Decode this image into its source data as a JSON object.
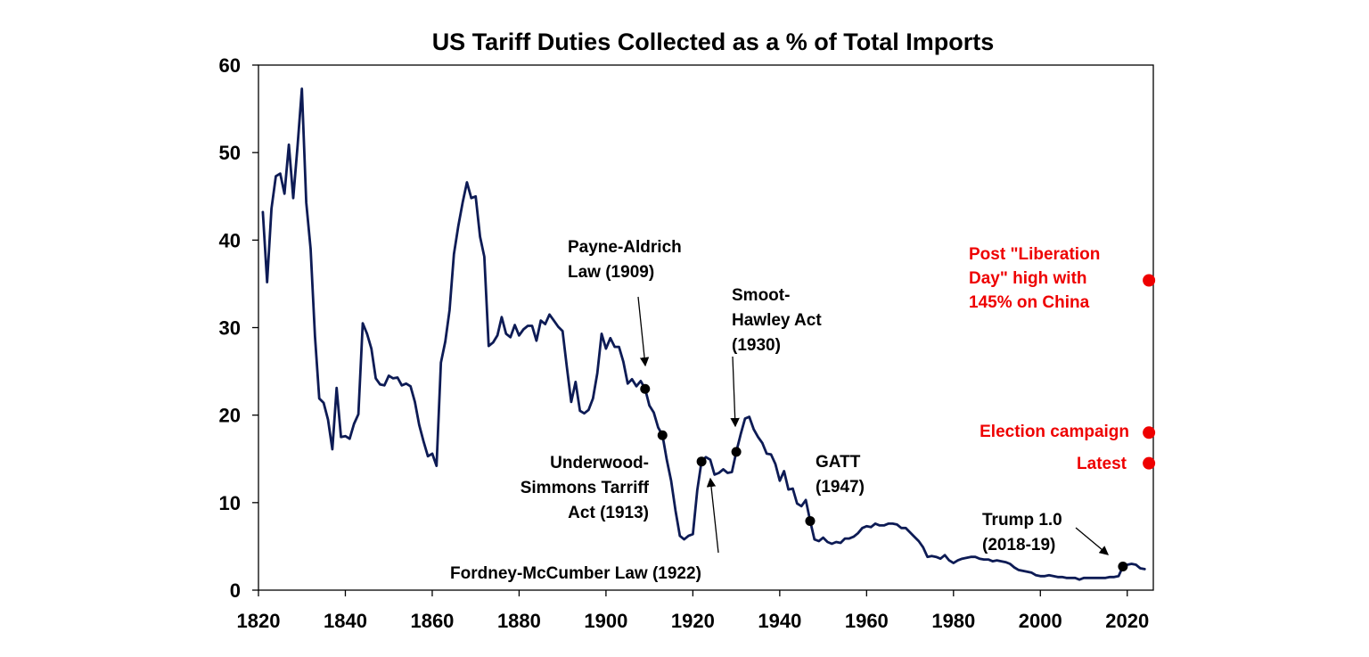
{
  "chart_data": {
    "type": "line",
    "title": "US Tariff Duties Collected as a % of Total Imports",
    "xlabel": "",
    "ylabel": "",
    "xlim": [
      1820,
      2026
    ],
    "ylim": [
      0,
      60
    ],
    "x_ticks": [
      "1820",
      "1840",
      "1860",
      "1880",
      "1900",
      "1920",
      "1940",
      "1960",
      "1980",
      "2000",
      "2020"
    ],
    "y_ticks": [
      "0",
      "10",
      "20",
      "30",
      "40",
      "50",
      "60"
    ],
    "grid": false,
    "colors": {
      "line": "#0d1b55",
      "marker": "#000000",
      "highlight": "#ee0000"
    },
    "series": [
      {
        "values": [
          [
            1821,
            43.2
          ],
          [
            1822,
            35.2
          ],
          [
            1823,
            43.6
          ],
          [
            1824,
            47.3
          ],
          [
            1825,
            47.6
          ],
          [
            1826,
            45.3
          ],
          [
            1827,
            50.9
          ],
          [
            1828,
            44.8
          ],
          [
            1829,
            50.8
          ],
          [
            1830,
            57.3
          ],
          [
            1831,
            44.3
          ],
          [
            1832,
            39.0
          ],
          [
            1833,
            29.0
          ],
          [
            1834,
            21.9
          ],
          [
            1835,
            21.4
          ],
          [
            1836,
            19.5
          ],
          [
            1837,
            16.1
          ],
          [
            1838,
            23.1
          ],
          [
            1839,
            17.5
          ],
          [
            1840,
            17.6
          ],
          [
            1841,
            17.3
          ],
          [
            1842,
            19.0
          ],
          [
            1843,
            20.1
          ],
          [
            1844,
            30.5
          ],
          [
            1845,
            29.3
          ],
          [
            1846,
            27.6
          ],
          [
            1847,
            24.2
          ],
          [
            1848,
            23.5
          ],
          [
            1849,
            23.4
          ],
          [
            1850,
            24.5
          ],
          [
            1851,
            24.2
          ],
          [
            1852,
            24.3
          ],
          [
            1853,
            23.4
          ],
          [
            1854,
            23.6
          ],
          [
            1855,
            23.3
          ],
          [
            1856,
            21.5
          ],
          [
            1857,
            18.9
          ],
          [
            1858,
            17.0
          ],
          [
            1859,
            15.3
          ],
          [
            1860,
            15.6
          ],
          [
            1861,
            14.2
          ],
          [
            1862,
            26.0
          ],
          [
            1863,
            28.4
          ],
          [
            1864,
            32.0
          ],
          [
            1865,
            38.4
          ],
          [
            1866,
            41.6
          ],
          [
            1867,
            44.3
          ],
          [
            1868,
            46.6
          ],
          [
            1869,
            44.8
          ],
          [
            1870,
            45.0
          ],
          [
            1871,
            40.4
          ],
          [
            1872,
            38.1
          ],
          [
            1873,
            27.9
          ],
          [
            1874,
            28.3
          ],
          [
            1875,
            29.1
          ],
          [
            1876,
            31.2
          ],
          [
            1877,
            29.3
          ],
          [
            1878,
            28.9
          ],
          [
            1879,
            30.3
          ],
          [
            1880,
            29.1
          ],
          [
            1881,
            29.8
          ],
          [
            1882,
            30.2
          ],
          [
            1883,
            30.2
          ],
          [
            1884,
            28.5
          ],
          [
            1885,
            30.8
          ],
          [
            1886,
            30.4
          ],
          [
            1887,
            31.5
          ],
          [
            1888,
            30.8
          ],
          [
            1889,
            30.1
          ],
          [
            1890,
            29.6
          ],
          [
            1891,
            25.5
          ],
          [
            1892,
            21.5
          ],
          [
            1893,
            23.8
          ],
          [
            1894,
            20.5
          ],
          [
            1895,
            20.2
          ],
          [
            1896,
            20.6
          ],
          [
            1897,
            21.9
          ],
          [
            1898,
            24.8
          ],
          [
            1899,
            29.3
          ],
          [
            1900,
            27.6
          ],
          [
            1901,
            28.8
          ],
          [
            1902,
            27.8
          ],
          [
            1903,
            27.8
          ],
          [
            1904,
            26.1
          ],
          [
            1905,
            23.6
          ],
          [
            1906,
            24.1
          ],
          [
            1907,
            23.3
          ],
          [
            1908,
            23.9
          ],
          [
            1909,
            23.0
          ],
          [
            1910,
            21.1
          ],
          [
            1911,
            20.3
          ],
          [
            1912,
            18.6
          ],
          [
            1913,
            17.7
          ],
          [
            1914,
            14.9
          ],
          [
            1915,
            12.5
          ],
          [
            1916,
            9.1
          ],
          [
            1917,
            6.2
          ],
          [
            1918,
            5.8
          ],
          [
            1919,
            6.2
          ],
          [
            1920,
            6.4
          ],
          [
            1921,
            11.4
          ],
          [
            1922,
            14.7
          ],
          [
            1923,
            15.2
          ],
          [
            1924,
            14.9
          ],
          [
            1925,
            13.2
          ],
          [
            1926,
            13.4
          ],
          [
            1927,
            13.8
          ],
          [
            1928,
            13.4
          ],
          [
            1929,
            13.5
          ],
          [
            1930,
            15.8
          ],
          [
            1931,
            17.8
          ],
          [
            1932,
            19.6
          ],
          [
            1933,
            19.8
          ],
          [
            1934,
            18.4
          ],
          [
            1935,
            17.5
          ],
          [
            1936,
            16.8
          ],
          [
            1937,
            15.6
          ],
          [
            1938,
            15.5
          ],
          [
            1939,
            14.4
          ],
          [
            1940,
            12.5
          ],
          [
            1941,
            13.6
          ],
          [
            1942,
            11.5
          ],
          [
            1943,
            11.6
          ],
          [
            1944,
            9.9
          ],
          [
            1945,
            9.6
          ],
          [
            1946,
            10.3
          ],
          [
            1947,
            7.9
          ],
          [
            1948,
            5.8
          ],
          [
            1949,
            5.6
          ],
          [
            1950,
            6.0
          ],
          [
            1951,
            5.5
          ],
          [
            1952,
            5.3
          ],
          [
            1953,
            5.5
          ],
          [
            1954,
            5.4
          ],
          [
            1955,
            5.9
          ],
          [
            1956,
            5.9
          ],
          [
            1957,
            6.1
          ],
          [
            1958,
            6.5
          ],
          [
            1959,
            7.1
          ],
          [
            1960,
            7.3
          ],
          [
            1961,
            7.2
          ],
          [
            1962,
            7.6
          ],
          [
            1963,
            7.4
          ],
          [
            1964,
            7.4
          ],
          [
            1965,
            7.6
          ],
          [
            1966,
            7.6
          ],
          [
            1967,
            7.5
          ],
          [
            1968,
            7.1
          ],
          [
            1969,
            7.1
          ],
          [
            1970,
            6.6
          ],
          [
            1971,
            6.1
          ],
          [
            1972,
            5.6
          ],
          [
            1973,
            4.9
          ],
          [
            1974,
            3.8
          ],
          [
            1975,
            3.9
          ],
          [
            1976,
            3.8
          ],
          [
            1977,
            3.6
          ],
          [
            1978,
            4.0
          ],
          [
            1979,
            3.4
          ],
          [
            1980,
            3.1
          ],
          [
            1981,
            3.4
          ],
          [
            1982,
            3.6
          ],
          [
            1983,
            3.7
          ],
          [
            1984,
            3.8
          ],
          [
            1985,
            3.8
          ],
          [
            1986,
            3.6
          ],
          [
            1987,
            3.5
          ],
          [
            1988,
            3.5
          ],
          [
            1989,
            3.3
          ],
          [
            1990,
            3.4
          ],
          [
            1991,
            3.3
          ],
          [
            1992,
            3.2
          ],
          [
            1993,
            3.0
          ],
          [
            1994,
            2.6
          ],
          [
            1995,
            2.3
          ],
          [
            1996,
            2.2
          ],
          [
            1997,
            2.1
          ],
          [
            1998,
            2.0
          ],
          [
            1999,
            1.7
          ],
          [
            2000,
            1.6
          ],
          [
            2001,
            1.6
          ],
          [
            2002,
            1.7
          ],
          [
            2003,
            1.6
          ],
          [
            2004,
            1.5
          ],
          [
            2005,
            1.5
          ],
          [
            2006,
            1.4
          ],
          [
            2007,
            1.4
          ],
          [
            2008,
            1.4
          ],
          [
            2009,
            1.2
          ],
          [
            2010,
            1.4
          ],
          [
            2011,
            1.4
          ],
          [
            2012,
            1.4
          ],
          [
            2013,
            1.4
          ],
          [
            2014,
            1.4
          ],
          [
            2015,
            1.4
          ],
          [
            2016,
            1.5
          ],
          [
            2017,
            1.5
          ],
          [
            2018,
            1.6
          ],
          [
            2019,
            2.7
          ],
          [
            2020,
            2.9
          ],
          [
            2021,
            3.0
          ],
          [
            2022,
            2.9
          ],
          [
            2023,
            2.5
          ],
          [
            2024,
            2.4
          ]
        ]
      }
    ],
    "markers": [
      {
        "x": 1909,
        "y": 23.0
      },
      {
        "x": 1913,
        "y": 17.7
      },
      {
        "x": 1922,
        "y": 14.7
      },
      {
        "x": 1930,
        "y": 15.8
      },
      {
        "x": 1947,
        "y": 7.9
      },
      {
        "x": 2019,
        "y": 2.7
      }
    ],
    "highlight_points": [
      {
        "x": 2025,
        "y": 35.4
      },
      {
        "x": 2025,
        "y": 18.0
      },
      {
        "x": 2025,
        "y": 14.5
      }
    ],
    "annotations": {
      "payne": [
        "Payne-Aldrich",
        "Law (1909)"
      ],
      "smoot": [
        "Smoot-",
        "Hawley Act",
        "(1930)"
      ],
      "underwood": [
        "Underwood-",
        "Simmons Tarriff",
        "Act (1913)"
      ],
      "fordney": [
        "Fordney-McCumber Law (1922)"
      ],
      "gatt": [
        "GATT",
        "(1947)"
      ],
      "trump": [
        "Trump 1.0",
        "(2018-19)"
      ],
      "liberation": [
        "Post \"Liberation",
        "Day\" high with",
        "145% on China"
      ],
      "election": [
        "Election campaign"
      ],
      "latest": [
        "Latest"
      ]
    }
  }
}
